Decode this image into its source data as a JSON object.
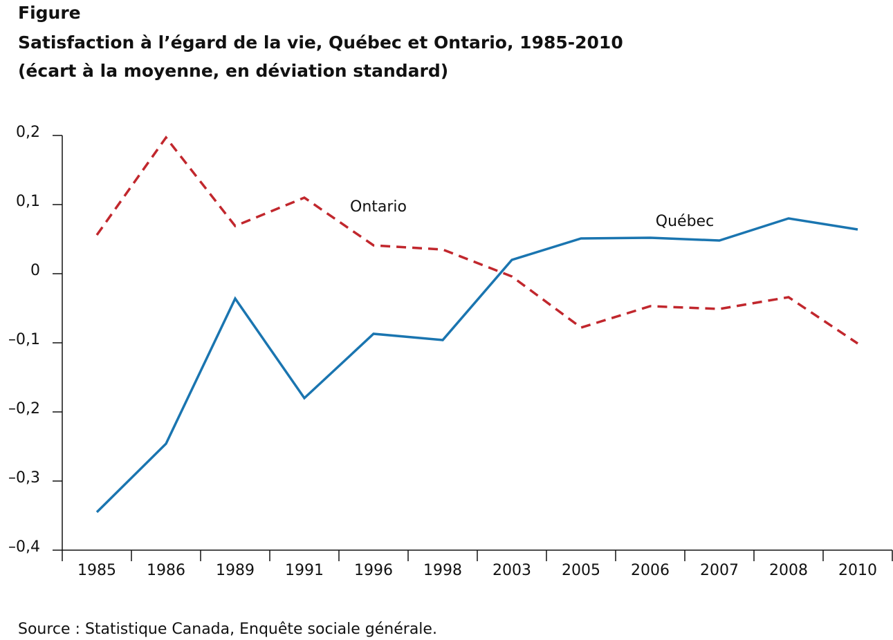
{
  "chart_data": {
    "type": "line",
    "title": "Figure",
    "subtitle": "Satisfaction à l’égard de la vie, Québec et Ontario, 1985-2010",
    "subtitle2": "(écart à la moyenne, en déviation standard)",
    "source": "Source : Statistique Canada, Enquête sociale générale.",
    "categories": [
      "1985",
      "1986",
      "1989",
      "1991",
      "1996",
      "1998",
      "2003",
      "2005",
      "2006",
      "2007",
      "2008",
      "2010"
    ],
    "series": [
      {
        "name": "Québec",
        "color": "#1a75b0",
        "style": "solid",
        "values": [
          -0.345,
          -0.246,
          -0.036,
          -0.18,
          -0.087,
          -0.096,
          0.02,
          0.051,
          0.052,
          0.048,
          0.08,
          0.064
        ]
      },
      {
        "name": "Ontario",
        "color": "#c1272d",
        "style": "dashed",
        "values": [
          0.056,
          0.197,
          0.069,
          0.11,
          0.041,
          0.035,
          -0.004,
          -0.078,
          -0.047,
          -0.051,
          -0.034,
          -0.101
        ]
      }
    ],
    "ylim": [
      -0.4,
      0.2
    ],
    "yticks": [
      {
        "value": 0.2,
        "label": "0,2"
      },
      {
        "value": 0.1,
        "label": "0,1"
      },
      0,
      {
        "value": -0.1,
        "label": "–0,1"
      },
      {
        "value": -0.2,
        "label": "–0,2"
      },
      {
        "value": -0.3,
        "label": "–0,3"
      },
      {
        "value": -0.4,
        "label": "–0,4"
      }
    ],
    "grid": false
  }
}
